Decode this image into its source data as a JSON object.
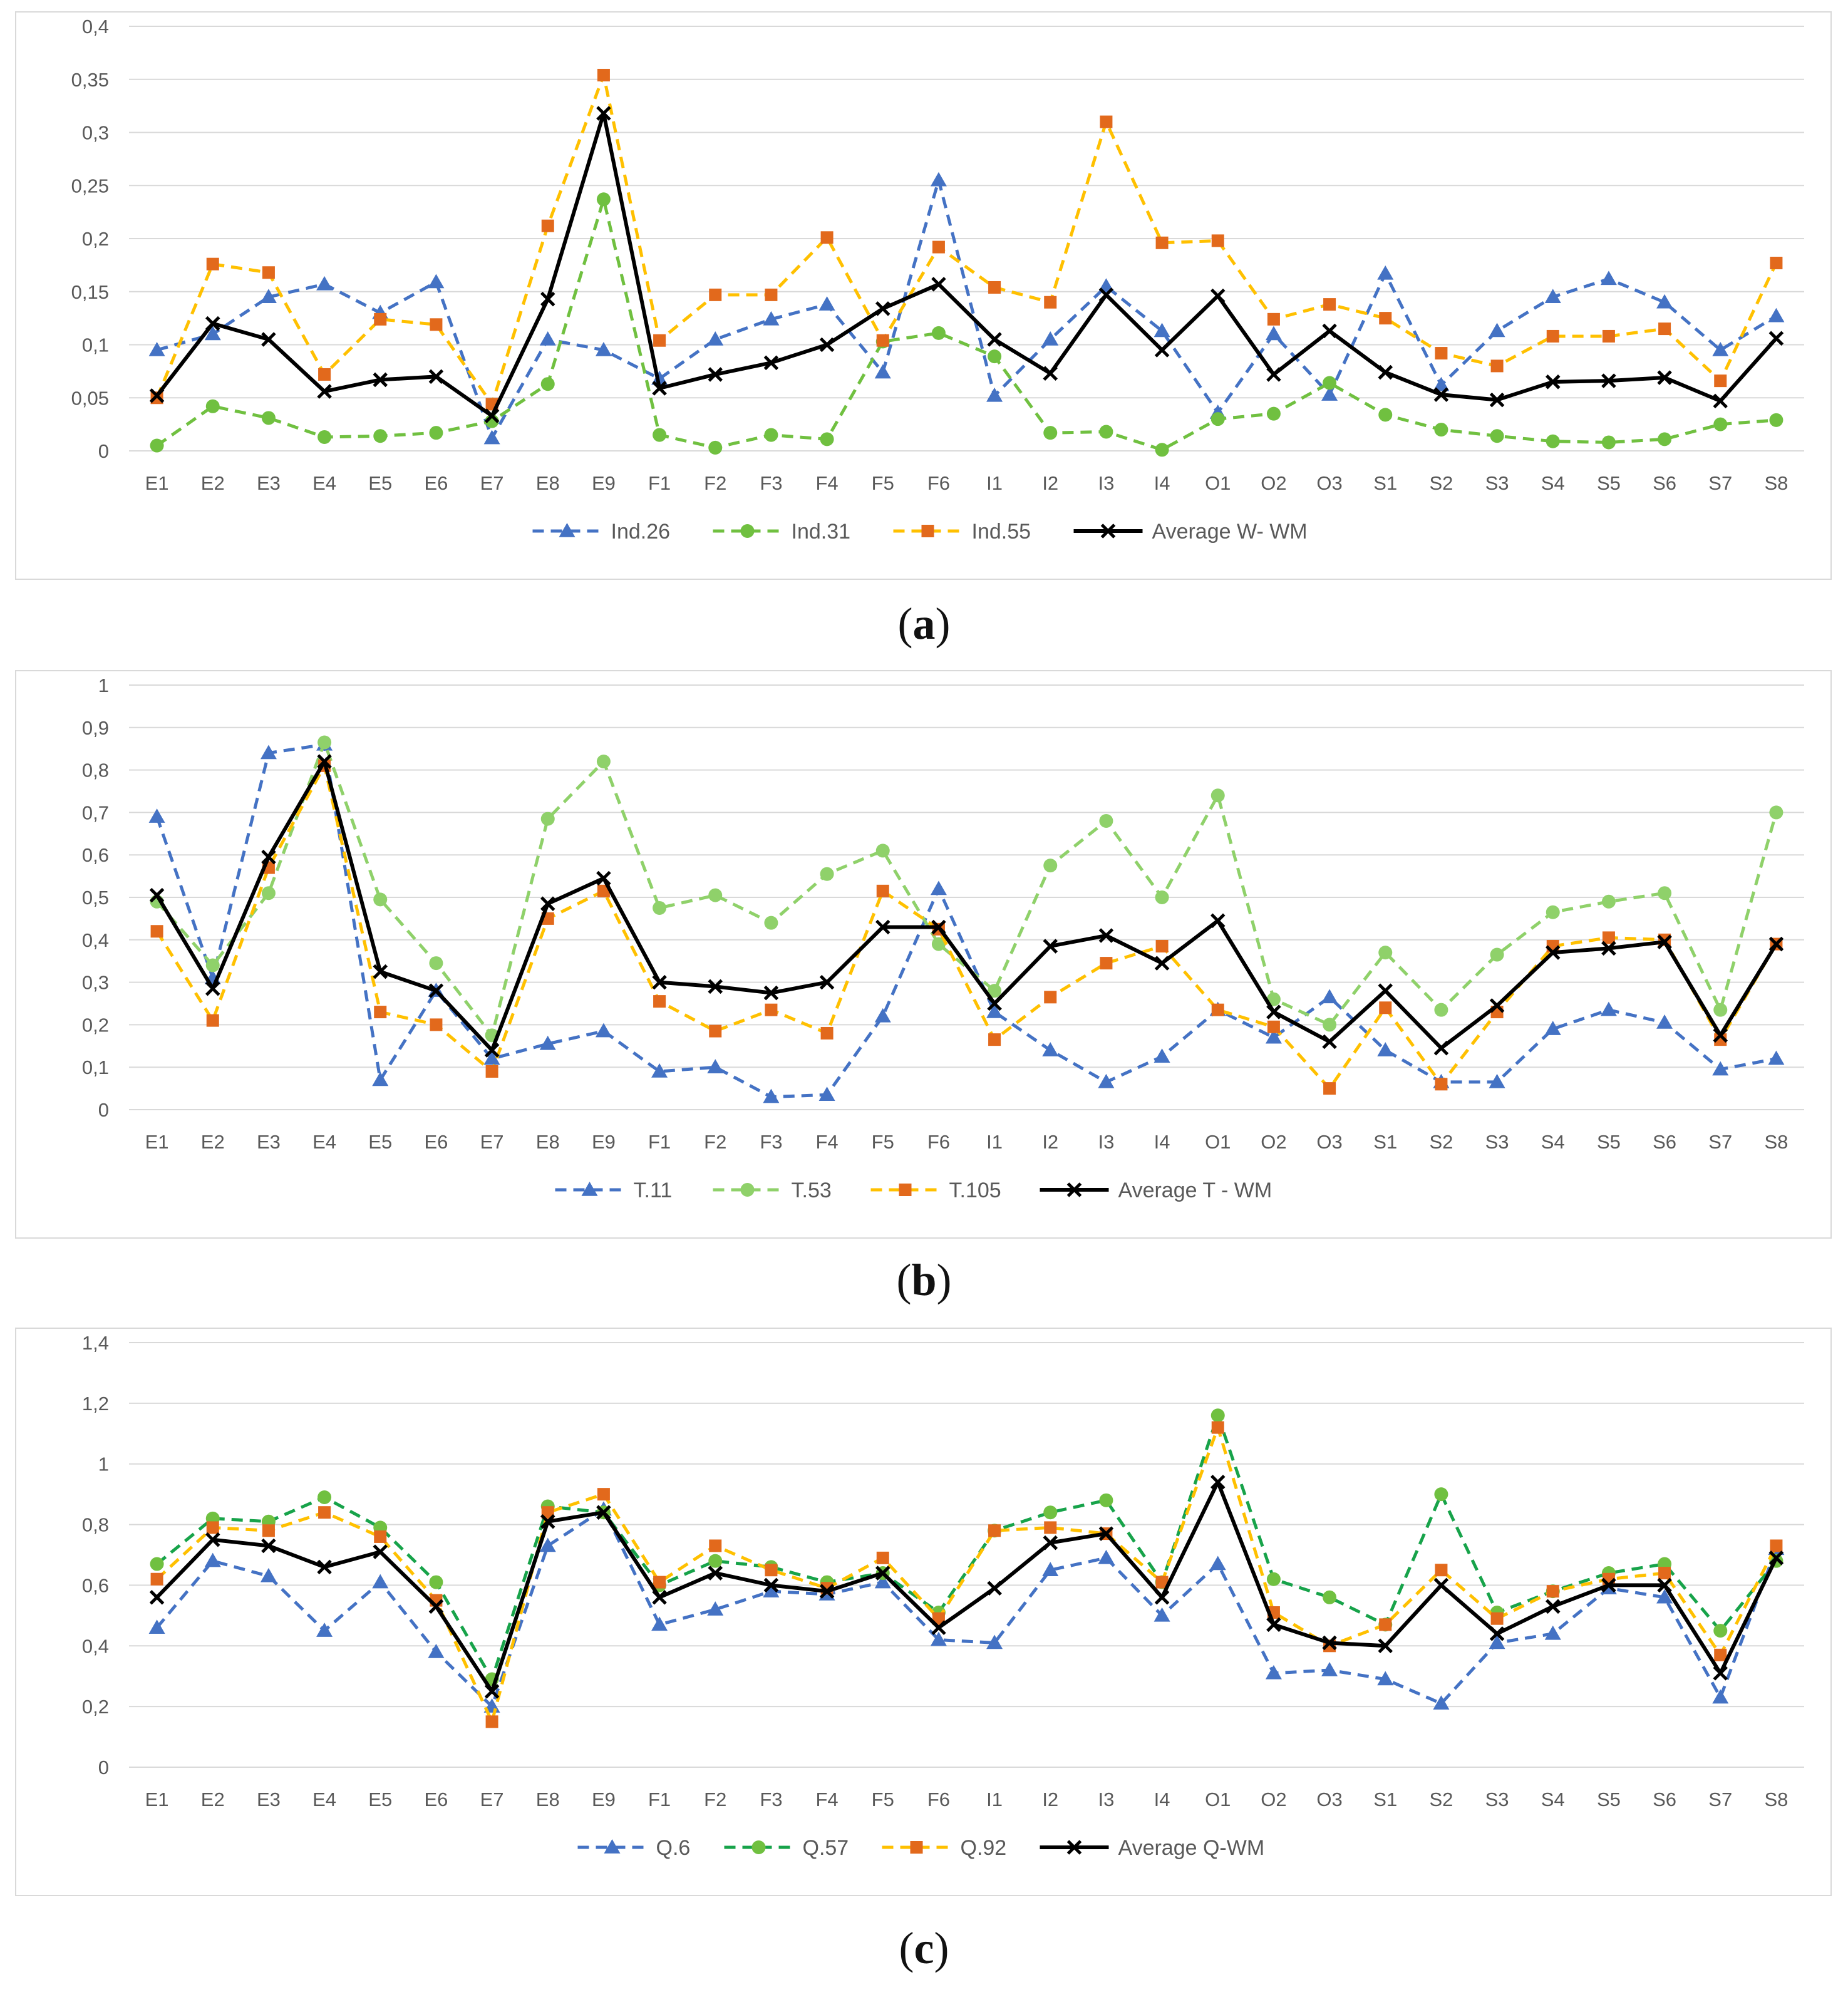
{
  "panel_labels": [
    "a",
    "b",
    "c"
  ],
  "chart_data": [
    {
      "type": "line",
      "panel": "a",
      "categories": [
        "E1",
        "E2",
        "E3",
        "E4",
        "E5",
        "E6",
        "E7",
        "E8",
        "E9",
        "F1",
        "F2",
        "F3",
        "F4",
        "F5",
        "F6",
        "I1",
        "I2",
        "I3",
        "I4",
        "O1",
        "O2",
        "O3",
        "S1",
        "S2",
        "S3",
        "S4",
        "S5",
        "S6",
        "S7",
        "S8"
      ],
      "ylim": [
        0,
        0.4
      ],
      "ytick_labels": [
        "0",
        "0,05",
        "0,1",
        "0,15",
        "0,2",
        "0,25",
        "0,3",
        "0,35",
        "0,4"
      ],
      "grid": true,
      "legend_position": "bottom",
      "series": [
        {
          "name": "Ind.26",
          "color": "#4472c4",
          "dash": true,
          "marker": "triangle",
          "values": [
            0.095,
            0.11,
            0.145,
            0.157,
            0.13,
            0.159,
            0.012,
            0.105,
            0.095,
            0.068,
            0.105,
            0.124,
            0.138,
            0.074,
            0.255,
            0.052,
            0.105,
            0.155,
            0.113,
            0.036,
            0.11,
            0.053,
            0.167,
            0.062,
            0.113,
            0.145,
            0.162,
            0.14,
            0.095,
            0.127
          ]
        },
        {
          "name": "Ind.31",
          "color": "#70c040",
          "dash": true,
          "marker": "circle",
          "values": [
            0.005,
            0.042,
            0.031,
            0.013,
            0.014,
            0.017,
            0.028,
            0.063,
            0.237,
            0.015,
            0.003,
            0.015,
            0.011,
            0.103,
            0.111,
            0.089,
            0.017,
            0.018,
            0.001,
            0.03,
            0.035,
            0.064,
            0.034,
            0.02,
            0.014,
            0.009,
            0.008,
            0.011,
            0.025,
            0.029
          ]
        },
        {
          "name": "Ind.55",
          "color": "#ffc000",
          "dash": true,
          "marker": "square",
          "marker_color": "#e2691c",
          "values": [
            0.05,
            0.176,
            0.168,
            0.072,
            0.124,
            0.119,
            0.044,
            0.212,
            0.354,
            0.104,
            0.147,
            0.147,
            0.201,
            0.104,
            0.192,
            0.154,
            0.14,
            0.31,
            0.196,
            0.198,
            0.124,
            0.138,
            0.125,
            0.092,
            0.08,
            0.108,
            0.108,
            0.115,
            0.066,
            0.177
          ]
        },
        {
          "name": "Average W- WM",
          "color": "#000000",
          "dash": false,
          "marker": "x",
          "values": [
            0.052,
            0.12,
            0.105,
            0.056,
            0.067,
            0.07,
            0.033,
            0.143,
            0.318,
            0.059,
            0.072,
            0.083,
            0.1,
            0.134,
            0.157,
            0.105,
            0.073,
            0.147,
            0.095,
            0.146,
            0.072,
            0.113,
            0.074,
            0.053,
            0.048,
            0.065,
            0.066,
            0.069,
            0.047,
            0.106
          ]
        }
      ]
    },
    {
      "type": "line",
      "panel": "b",
      "categories": [
        "E1",
        "E2",
        "E3",
        "E4",
        "E5",
        "E6",
        "E7",
        "E8",
        "E9",
        "F1",
        "F2",
        "F3",
        "F4",
        "F5",
        "F6",
        "I1",
        "I2",
        "I3",
        "I4",
        "O1",
        "O2",
        "O3",
        "S1",
        "S2",
        "S3",
        "S4",
        "S5",
        "S6",
        "S7",
        "S8"
      ],
      "ylim": [
        0,
        1
      ],
      "ytick_labels": [
        "0",
        "0,1",
        "0,2",
        "0,3",
        "0,4",
        "0,5",
        "0,6",
        "0,7",
        "0,8",
        "0,9",
        "1"
      ],
      "grid": true,
      "legend_position": "bottom",
      "series": [
        {
          "name": "T.11",
          "color": "#4472c4",
          "dash": true,
          "marker": "triangle",
          "values": [
            0.69,
            0.31,
            0.84,
            0.86,
            0.07,
            0.28,
            0.12,
            0.155,
            0.185,
            0.09,
            0.1,
            0.03,
            0.035,
            0.22,
            0.52,
            0.23,
            0.14,
            0.065,
            0.125,
            0.235,
            0.17,
            0.265,
            0.14,
            0.065,
            0.065,
            0.19,
            0.235,
            0.205,
            0.095,
            0.12
          ]
        },
        {
          "name": "T.53",
          "color": "#8fd16a",
          "dash": true,
          "marker": "circle",
          "values": [
            0.49,
            0.34,
            0.51,
            0.865,
            0.495,
            0.345,
            0.175,
            0.685,
            0.82,
            0.475,
            0.505,
            0.44,
            0.555,
            0.61,
            0.39,
            0.28,
            0.575,
            0.68,
            0.5,
            0.74,
            0.26,
            0.2,
            0.37,
            0.235,
            0.365,
            0.465,
            0.49,
            0.51,
            0.235,
            0.7
          ]
        },
        {
          "name": "T.105",
          "color": "#ffc000",
          "dash": true,
          "marker": "square",
          "marker_color": "#e2691c",
          "values": [
            0.42,
            0.21,
            0.57,
            0.81,
            0.23,
            0.2,
            0.09,
            0.45,
            0.515,
            0.255,
            0.185,
            0.235,
            0.18,
            0.515,
            0.425,
            0.165,
            0.265,
            0.345,
            0.385,
            0.235,
            0.195,
            0.05,
            0.24,
            0.06,
            0.23,
            0.385,
            0.405,
            0.4,
            0.165,
            0.39
          ]
        },
        {
          "name": "Average T - WM",
          "color": "#000000",
          "dash": false,
          "marker": "x",
          "values": [
            0.505,
            0.285,
            0.595,
            0.82,
            0.325,
            0.28,
            0.14,
            0.485,
            0.545,
            0.3,
            0.29,
            0.275,
            0.3,
            0.43,
            0.43,
            0.25,
            0.385,
            0.41,
            0.345,
            0.445,
            0.23,
            0.16,
            0.28,
            0.145,
            0.245,
            0.37,
            0.38,
            0.395,
            0.175,
            0.39
          ]
        }
      ]
    },
    {
      "type": "line",
      "panel": "c",
      "categories": [
        "E1",
        "E2",
        "E3",
        "E4",
        "E5",
        "E6",
        "E7",
        "E8",
        "E9",
        "F1",
        "F2",
        "F3",
        "F4",
        "F5",
        "F6",
        "I1",
        "I2",
        "I3",
        "I4",
        "O1",
        "O2",
        "O3",
        "S1",
        "S2",
        "S3",
        "S4",
        "S5",
        "S6",
        "S7",
        "S8"
      ],
      "ylim": [
        0,
        1.4
      ],
      "ytick_labels": [
        "0",
        "0,2",
        "0,4",
        "0,6",
        "0,8",
        "1",
        "1,2",
        "1,4"
      ],
      "grid": true,
      "legend_position": "bottom",
      "series": [
        {
          "name": "Q.6",
          "color": "#4472c4",
          "dash": true,
          "marker": "triangle",
          "values": [
            0.46,
            0.68,
            0.63,
            0.45,
            0.61,
            0.38,
            0.2,
            0.73,
            0.85,
            0.47,
            0.52,
            0.58,
            0.57,
            0.61,
            0.42,
            0.41,
            0.65,
            0.69,
            0.5,
            0.67,
            0.31,
            0.32,
            0.29,
            0.21,
            0.41,
            0.44,
            0.59,
            0.56,
            0.23,
            0.72
          ]
        },
        {
          "name": "Q.57",
          "color": "#17a34a",
          "dash": true,
          "marker": "circle",
          "marker_color": "#70c040",
          "values": [
            0.67,
            0.82,
            0.81,
            0.89,
            0.79,
            0.61,
            0.29,
            0.86,
            0.84,
            0.6,
            0.68,
            0.66,
            0.61,
            0.64,
            0.51,
            0.78,
            0.84,
            0.88,
            0.61,
            1.16,
            0.62,
            0.56,
            0.47,
            0.9,
            0.51,
            0.58,
            0.64,
            0.67,
            0.45,
            0.68
          ]
        },
        {
          "name": "Q.92",
          "color": "#ffc000",
          "dash": true,
          "marker": "square",
          "marker_color": "#e2691c",
          "values": [
            0.62,
            0.79,
            0.78,
            0.84,
            0.76,
            0.55,
            0.15,
            0.84,
            0.9,
            0.61,
            0.73,
            0.65,
            0.59,
            0.69,
            0.49,
            0.78,
            0.79,
            0.77,
            0.61,
            1.12,
            0.51,
            0.4,
            0.47,
            0.65,
            0.49,
            0.58,
            0.62,
            0.64,
            0.37,
            0.73
          ]
        },
        {
          "name": "Average Q-WM",
          "color": "#000000",
          "dash": false,
          "marker": "x",
          "values": [
            0.56,
            0.75,
            0.73,
            0.66,
            0.71,
            0.53,
            0.25,
            0.81,
            0.84,
            0.56,
            0.64,
            0.6,
            0.58,
            0.64,
            0.46,
            0.59,
            0.74,
            0.77,
            0.56,
            0.94,
            0.47,
            0.41,
            0.4,
            0.6,
            0.44,
            0.53,
            0.6,
            0.6,
            0.31,
            0.69
          ]
        }
      ]
    }
  ]
}
